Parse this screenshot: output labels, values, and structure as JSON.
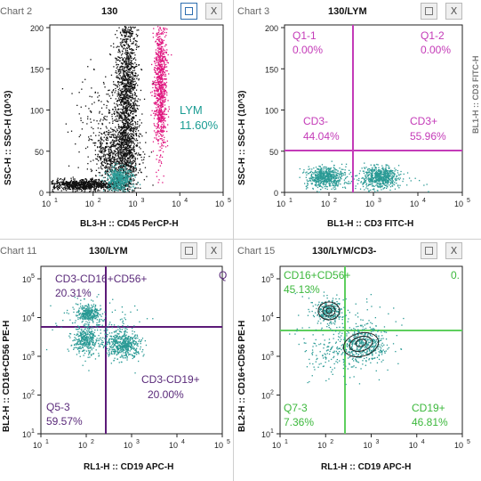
{
  "colors": {
    "teal": "#2a9a95",
    "black_pop": "#111111",
    "magenta": "#e0157f",
    "purple": "#5c1a78",
    "lym_text": "#1a9c93",
    "q_text_pink": "#c43bb8",
    "green_line": "#5ecf5e",
    "green_text": "#3cb83c",
    "q_text_purple": "#5a2a7a",
    "axis_label": "#111111"
  },
  "panels": [
    {
      "chart_label": "Chart 2",
      "name": "130",
      "restore_icon": "square-icon",
      "close_label": "X",
      "xlabel": "BL3-H :: CD45 PerCP-H",
      "ylabel": "SSC-H :: SSC-H (10^3)",
      "y_ticks": [
        "200",
        "150",
        "100",
        "50",
        "0"
      ],
      "x_ticks": [
        "10",
        "10",
        "10",
        "10",
        "10",
        "10"
      ],
      "x_exps": [
        "1",
        "2",
        "3",
        "4",
        "5"
      ],
      "gate_name": "LYM",
      "gate_pct": "11.60%"
    },
    {
      "chart_label": "Chart 3",
      "name": "130/LYM",
      "restore_icon": "square-icon",
      "close_label": "X",
      "xlabel": "BL1-H :: CD3 FITC-H",
      "ylabel": "SSC-H :: SSC-H (10^3)",
      "y_ticks": [
        "200",
        "150",
        "100",
        "50",
        "0"
      ],
      "x_exps": [
        "1",
        "2",
        "3",
        "4",
        "5"
      ],
      "q": [
        {
          "name": "Q1-1",
          "pct": "0.00%"
        },
        {
          "name": "Q1-2",
          "pct": "0.00%"
        },
        {
          "name": "CD3-",
          "pct": "44.04%"
        },
        {
          "name": "CD3+",
          "pct": "55.96%"
        }
      ]
    },
    {
      "chart_label": "Chart 11",
      "name": "130/LYM",
      "restore_icon": "square-icon",
      "close_label": "X",
      "xlabel": "RL1-H :: CD19 APC-H",
      "ylabel": "BL2-H :: CD16+CD56 PE-H",
      "y_exps": [
        "5",
        "4",
        "3",
        "2",
        "1"
      ],
      "x_exps": [
        "1",
        "2",
        "3",
        "4",
        "5"
      ],
      "q": [
        {
          "name": "CD3-CD16+CD56+",
          "pct": "20.31%"
        },
        {
          "name": "CD3-CD19+",
          "pct": "20.00%"
        },
        {
          "name": "Q5-3",
          "pct": "59.57%"
        }
      ],
      "clip_right": "Q"
    },
    {
      "chart_label": "Chart 15",
      "name": "130/LYM/CD3-",
      "restore_icon": "square-icon",
      "close_label": "X",
      "xlabel": "RL1-H :: CD19 APC-H",
      "ylabel": "BL2-H :: CD16+CD56 PE-H",
      "y_exps": [
        "5",
        "4",
        "3",
        "2",
        "1"
      ],
      "x_exps": [
        "1",
        "2",
        "3",
        "4",
        "5"
      ],
      "q": [
        {
          "name": "CD16+CD56+",
          "pct": "45.13%"
        },
        {
          "name": "Q7-3",
          "pct": "7.36%"
        },
        {
          "name": "CD19+",
          "pct": "46.81%"
        }
      ],
      "clip_right": "0."
    }
  ],
  "right_edge_label": "BL1-H :: CD3 FITC-H"
}
